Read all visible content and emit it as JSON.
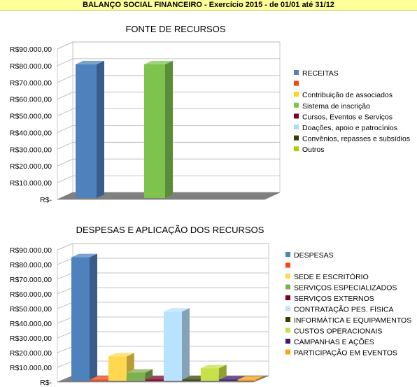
{
  "header": {
    "title": "BALANÇO SOCIAL FINANCEIRO - Exercício 2015  - de 01/01 até 31/12"
  },
  "chart_data": [
    {
      "type": "bar",
      "title": "FONTE DE RECURSOS",
      "categories": [
        "RECEITAS",
        "",
        "Contribuição de associados",
        "Sistema de inscrição",
        "Cursos, Eventos e Serviços",
        "Doações, apoio e patrocínios",
        "Convênios, repasses e subsídios",
        "Outros"
      ],
      "values": [
        80000,
        0,
        0,
        80000,
        0,
        0,
        0,
        0
      ],
      "colors": [
        "#4f81bd",
        "#ff420e",
        "#ffd320",
        "#7fc34f",
        "#7e0021",
        "#a8dcfa",
        "#314004",
        "#aecf00"
      ],
      "ylim": [
        0,
        90000
      ],
      "ytick_step": 10000,
      "y_tick_labels": [
        "R$-",
        "R$10.000,00",
        "R$20.000,00",
        "R$30.000,00",
        "R$40.000,00",
        "R$50.000,00",
        "R$60.000,00",
        "R$70.000,00",
        "R$80.000,00",
        "R$90.000,00"
      ],
      "grid": true,
      "legend": "right"
    },
    {
      "type": "bar",
      "title": "DESPESAS E APLICAÇÃO DOS RECURSOS",
      "categories": [
        "DESPESAS",
        "",
        "SEDE E ESCRITÓRIO",
        "SERVIÇOS ESPECIALIZADOS",
        "SERVIÇOS EXTERNOS",
        "CONTRATAÇÃO PES. FÍSICA",
        "INFORMÁTICA E EQUIPAMENTOS",
        "CUSTOS OPERACIONAIS",
        "CAMPANHAS E AÇÕES",
        "PARTICIPAÇÃO EM EVENTOS"
      ],
      "values": [
        84000,
        0,
        16500,
        5500,
        500,
        47000,
        500,
        8500,
        500,
        0
      ],
      "colors": [
        "#4f81bd",
        "#ff420e",
        "#ffd84f",
        "#7fb04f",
        "#7e0021",
        "#b8e2fd",
        "#314004",
        "#c8e04a",
        "#3b1a6b",
        "#ff9e0e"
      ],
      "ylim": [
        0,
        90000
      ],
      "ytick_step": 10000,
      "y_tick_labels": [
        "R$-",
        "R$10.000,00",
        "R$20.000,00",
        "R$30.000,00",
        "R$40.000,00",
        "R$50.000,00",
        "R$60.000,00",
        "R$70.000,00",
        "R$80.000,00",
        "R$90.000,00"
      ],
      "grid": true,
      "legend": "right"
    }
  ]
}
